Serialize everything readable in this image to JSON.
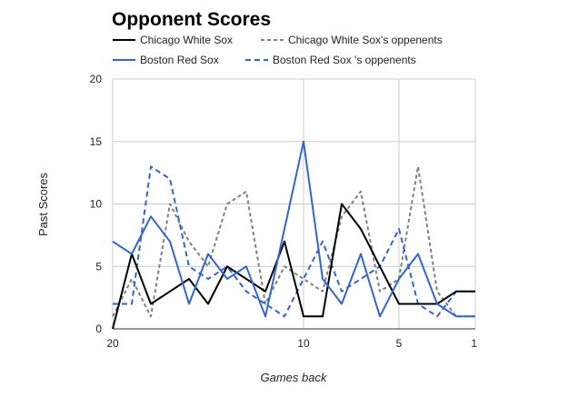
{
  "chart_data": {
    "type": "line",
    "title": "Opponent Scores",
    "xlabel": "Games back",
    "ylabel": "Past Scores",
    "xlim": [
      20,
      1
    ],
    "ylim": [
      0,
      20
    ],
    "x_ticks": [
      20,
      10,
      5,
      1
    ],
    "y_ticks": [
      0,
      5,
      10,
      15,
      20
    ],
    "grid": true,
    "legend_position": "top",
    "x": [
      20,
      19,
      18,
      17,
      16,
      15,
      14,
      13,
      12,
      11,
      10,
      9,
      8,
      7,
      6,
      5,
      4,
      3,
      2,
      1
    ],
    "series": [
      {
        "name": "Chicago White Sox",
        "color": "#000000",
        "dash": "solid",
        "values": [
          0,
          6,
          2,
          3,
          4,
          2,
          5,
          4,
          3,
          7,
          1,
          1,
          10,
          8,
          5,
          2,
          2,
          2,
          3,
          3
        ]
      },
      {
        "name": "Chicago White Sox's oppenents",
        "color": "#808080",
        "dash": "dashed",
        "values": [
          1,
          4,
          1,
          10,
          7,
          5,
          10,
          11,
          2,
          5,
          4,
          3,
          9,
          11,
          3,
          4,
          13,
          3,
          1,
          1
        ]
      },
      {
        "name": "Boston Red Sox",
        "color": "#3366cc",
        "dash": "solid",
        "values": [
          7,
          6,
          9,
          7,
          2,
          6,
          4,
          5,
          1,
          8,
          15,
          4,
          2,
          6,
          1,
          4,
          6,
          2,
          1,
          1
        ]
      },
      {
        "name": "Boston Red Sox 's oppenents",
        "color": "#3366cc",
        "dash": "dashed",
        "values": [
          2,
          2,
          13,
          12,
          5,
          4,
          5,
          3,
          2,
          1,
          4,
          7,
          3,
          4,
          5,
          8,
          2,
          1,
          3,
          3
        ]
      }
    ]
  }
}
